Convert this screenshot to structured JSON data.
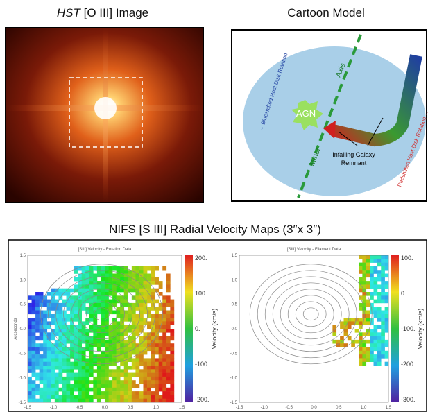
{
  "top_left": {
    "title_italic": "HST",
    "title_rest": "[O III] Image"
  },
  "top_right": {
    "title": "Cartoon Model",
    "labels": {
      "blue_rotation": "← Blueshifted Host Disk Rotation",
      "axis": "Axis",
      "minor": "Minor",
      "agn": "AGN",
      "infalling_1": "Infalling Galaxy",
      "infalling_2": "Remnant",
      "red_rotation": "Redshifted Host Disk Rotation →"
    }
  },
  "bottom": {
    "title": "NIFS [S III] Radial Velocity Maps (3″x 3″)",
    "maps": [
      {
        "title": "[SIII] Velocity - Rotation Data",
        "y_label": "Arcseconds",
        "colorbar_label": "Velocity (km/s)",
        "xticks": [
          "-1.5",
          "-1.0",
          "-0.5",
          "0.0",
          "0.5",
          "1.0",
          "1.5"
        ],
        "yticks": [
          "1.5",
          "1.0",
          "0.5",
          "0.0",
          "-0.5",
          "-1.0",
          "-1.5"
        ],
        "colorbar_ticks": [
          "200.",
          "100.",
          "0.",
          "-100.",
          "-200."
        ]
      },
      {
        "title": "[SIII] Velocity - Filament Data",
        "colorbar_label": "Velocity (km/s)",
        "xticks": [
          "-1.5",
          "-1.0",
          "-0.5",
          "0.0",
          "0.5",
          "1.0",
          "1.5"
        ],
        "yticks": [
          "1.5",
          "1.0",
          "0.5",
          "0.0",
          "-0.5",
          "-1.0",
          "-1.5"
        ],
        "colorbar_ticks": [
          "100.",
          "0.",
          "-100.",
          "-200.",
          "-300."
        ]
      }
    ]
  }
}
